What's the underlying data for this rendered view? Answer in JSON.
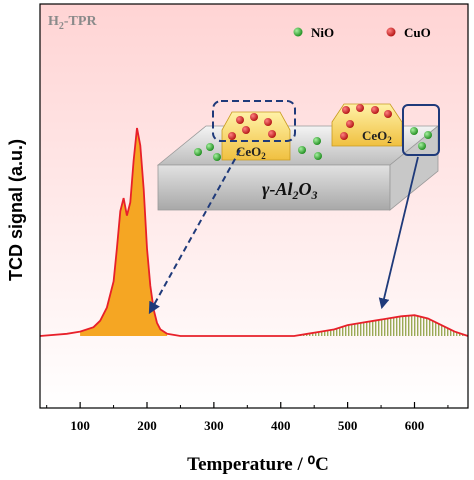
{
  "chart_data": {
    "type": "line",
    "title": "",
    "xlabel": "Temperature / ⁰C",
    "ylabel": "TCD signal (a.u.)",
    "xlim": [
      40,
      680
    ],
    "xticks": [
      100,
      200,
      300,
      400,
      500,
      600
    ],
    "x": [
      40,
      80,
      100,
      120,
      130,
      140,
      150,
      155,
      160,
      165,
      170,
      175,
      180,
      185,
      190,
      195,
      200,
      205,
      210,
      215,
      220,
      230,
      250,
      300,
      350,
      400,
      420,
      440,
      460,
      480,
      500,
      520,
      540,
      560,
      580,
      600,
      620,
      640,
      660,
      680
    ],
    "y": [
      0.05,
      0.06,
      0.07,
      0.09,
      0.12,
      0.18,
      0.3,
      0.45,
      0.62,
      0.68,
      0.6,
      0.66,
      0.85,
      1.0,
      0.92,
      0.72,
      0.45,
      0.28,
      0.17,
      0.11,
      0.08,
      0.06,
      0.05,
      0.05,
      0.05,
      0.05,
      0.05,
      0.06,
      0.07,
      0.08,
      0.1,
      0.11,
      0.12,
      0.13,
      0.14,
      0.145,
      0.13,
      0.1,
      0.07,
      0.05
    ],
    "line_color": "#e8202a",
    "low_temp_fill_color": "#f5a623",
    "low_temp_fill_range": [
      100,
      230
    ],
    "high_temp_hatch_color": "#9aaa55",
    "high_temp_hatch_range": [
      420,
      680
    ],
    "background_gradient": [
      "#ffd4d4",
      "#ffffff"
    ],
    "grid": false,
    "panel_label": "H",
    "panel_label_sub": "2",
    "panel_label_rest": "-TPR",
    "legend": [
      {
        "label": "NiO",
        "color": "#22a022",
        "icon": "green-dot-icon"
      },
      {
        "label": "CuO",
        "color": "#c81e1e",
        "icon": "red-dot-icon"
      }
    ],
    "support_label": "γ-Al",
    "support_sub1": "2",
    "support_mid": "O",
    "support_sub2": "3",
    "ceria_label": "CeO",
    "ceria_sub": "2"
  }
}
